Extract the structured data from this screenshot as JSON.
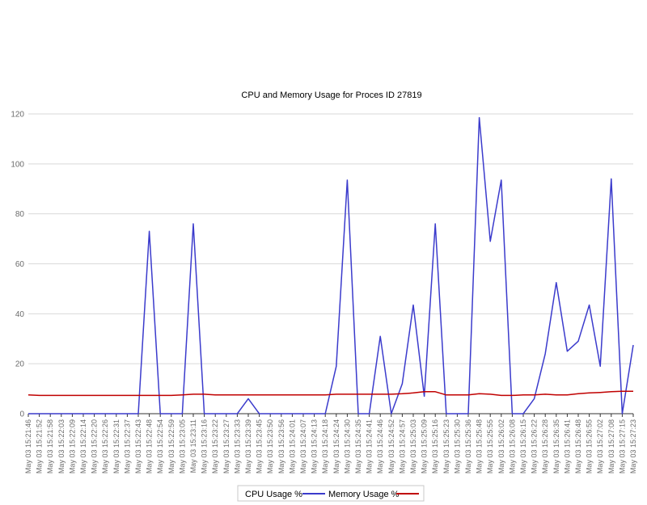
{
  "chart_data": {
    "type": "line",
    "title": "CPU and Memory Usage for Proces ID 27819",
    "xlabel": "",
    "ylabel": "",
    "ylim": [
      0,
      120
    ],
    "yticks": [
      0,
      20,
      40,
      60,
      80,
      100,
      120
    ],
    "grid": true,
    "legend_position": "bottom",
    "x": [
      "May 03 15:21:46",
      "May 03 15:21:52",
      "May 03 15:21:58",
      "May 03 15:22:03",
      "May 03 15:22:09",
      "May 03 15:22:14",
      "May 03 15:22:20",
      "May 03 15:22:26",
      "May 03 15:22:31",
      "May 03 15:22:37",
      "May 03 15:22:43",
      "May 03 15:22:48",
      "May 03 15:22:54",
      "May 03 15:22:59",
      "May 03 15:23:05",
      "May 03 15:23:11",
      "May 03 15:23:16",
      "May 03 15:23:22",
      "May 03 15:23:27",
      "May 03 15:23:33",
      "May 03 15:23:39",
      "May 03 15:23:45",
      "May 03 15:23:50",
      "May 03 15:23:56",
      "May 03 15:24:01",
      "May 03 15:24:07",
      "May 03 15:24:13",
      "May 03 15:24:18",
      "May 03 15:24:24",
      "May 03 15:24:30",
      "May 03 15:24:35",
      "May 03 15:24:41",
      "May 03 15:24:46",
      "May 03 15:24:52",
      "May 03 15:24:57",
      "May 03 15:25:03",
      "May 03 15:25:09",
      "May 03 15:25:16",
      "May 03 15:25:23",
      "May 03 15:25:30",
      "May 03 15:25:36",
      "May 03 15:25:48",
      "May 03 15:25:55",
      "May 03 15:26:02",
      "May 03 15:26:08",
      "May 03 15:26:15",
      "May 03 15:26:22",
      "May 03 15:26:28",
      "May 03 15:26:35",
      "May 03 15:26:41",
      "May 03 15:26:48",
      "May 03 15:26:55",
      "May 03 15:27:02",
      "May 03 15:27:08",
      "May 03 15:27:15",
      "May 03 15:27:23"
    ],
    "series": [
      {
        "name": "CPU Usage %",
        "color": "#3b3bcc",
        "values": [
          0,
          0,
          0,
          0,
          0,
          0,
          0,
          0,
          0,
          0,
          0,
          73,
          0,
          0,
          0,
          76,
          0,
          0,
          0,
          0,
          6,
          0,
          0,
          0,
          0,
          0,
          0,
          0,
          19,
          93.5,
          0,
          0,
          31,
          0,
          12,
          43.5,
          7,
          76,
          0,
          0,
          0,
          118.5,
          69,
          93.5,
          0,
          0,
          6,
          24,
          52.5,
          25,
          29,
          43.5,
          19,
          94,
          0,
          27.5
        ]
      },
      {
        "name": "Memory Usage %",
        "color": "#c00000",
        "values": [
          7.5,
          7.3,
          7.3,
          7.3,
          7.3,
          7.3,
          7.3,
          7.3,
          7.3,
          7.3,
          7.3,
          7.3,
          7.3,
          7.3,
          7.5,
          7.8,
          7.8,
          7.5,
          7.5,
          7.5,
          7.5,
          7.5,
          7.5,
          7.5,
          7.5,
          7.5,
          7.5,
          7.5,
          7.8,
          7.8,
          7.8,
          7.8,
          7.8,
          7.8,
          8,
          8.3,
          8.8,
          8.8,
          7.5,
          7.5,
          7.5,
          8,
          7.8,
          7.3,
          7.3,
          7.5,
          7.5,
          7.8,
          7.5,
          7.5,
          8,
          8.3,
          8.5,
          8.8,
          9,
          9
        ]
      }
    ]
  }
}
